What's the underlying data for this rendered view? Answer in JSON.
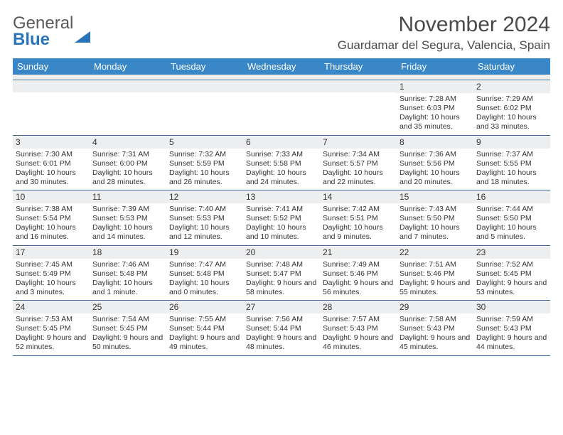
{
  "logo": {
    "word1": "General",
    "word2": "Blue"
  },
  "title": "November 2024",
  "location": "Guardamar del Segura, Valencia, Spain",
  "colors": {
    "header_bg": "#3a87c8",
    "daynum_bg": "#eceef0",
    "week_border": "#3a6a9a",
    "text": "#333333",
    "logo_gray": "#5a5a5a",
    "logo_blue": "#2a74bc",
    "page_bg": "#ffffff"
  },
  "day_names": [
    "Sunday",
    "Monday",
    "Tuesday",
    "Wednesday",
    "Thursday",
    "Friday",
    "Saturday"
  ],
  "weeks": [
    [
      {
        "empty": true
      },
      {
        "empty": true
      },
      {
        "empty": true
      },
      {
        "empty": true
      },
      {
        "empty": true
      },
      {
        "n": "1",
        "sr": "Sunrise: 7:28 AM",
        "ss": "Sunset: 6:03 PM",
        "dl": "Daylight: 10 hours and 35 minutes."
      },
      {
        "n": "2",
        "sr": "Sunrise: 7:29 AM",
        "ss": "Sunset: 6:02 PM",
        "dl": "Daylight: 10 hours and 33 minutes."
      }
    ],
    [
      {
        "n": "3",
        "sr": "Sunrise: 7:30 AM",
        "ss": "Sunset: 6:01 PM",
        "dl": "Daylight: 10 hours and 30 minutes."
      },
      {
        "n": "4",
        "sr": "Sunrise: 7:31 AM",
        "ss": "Sunset: 6:00 PM",
        "dl": "Daylight: 10 hours and 28 minutes."
      },
      {
        "n": "5",
        "sr": "Sunrise: 7:32 AM",
        "ss": "Sunset: 5:59 PM",
        "dl": "Daylight: 10 hours and 26 minutes."
      },
      {
        "n": "6",
        "sr": "Sunrise: 7:33 AM",
        "ss": "Sunset: 5:58 PM",
        "dl": "Daylight: 10 hours and 24 minutes."
      },
      {
        "n": "7",
        "sr": "Sunrise: 7:34 AM",
        "ss": "Sunset: 5:57 PM",
        "dl": "Daylight: 10 hours and 22 minutes."
      },
      {
        "n": "8",
        "sr": "Sunrise: 7:36 AM",
        "ss": "Sunset: 5:56 PM",
        "dl": "Daylight: 10 hours and 20 minutes."
      },
      {
        "n": "9",
        "sr": "Sunrise: 7:37 AM",
        "ss": "Sunset: 5:55 PM",
        "dl": "Daylight: 10 hours and 18 minutes."
      }
    ],
    [
      {
        "n": "10",
        "sr": "Sunrise: 7:38 AM",
        "ss": "Sunset: 5:54 PM",
        "dl": "Daylight: 10 hours and 16 minutes."
      },
      {
        "n": "11",
        "sr": "Sunrise: 7:39 AM",
        "ss": "Sunset: 5:53 PM",
        "dl": "Daylight: 10 hours and 14 minutes."
      },
      {
        "n": "12",
        "sr": "Sunrise: 7:40 AM",
        "ss": "Sunset: 5:53 PM",
        "dl": "Daylight: 10 hours and 12 minutes."
      },
      {
        "n": "13",
        "sr": "Sunrise: 7:41 AM",
        "ss": "Sunset: 5:52 PM",
        "dl": "Daylight: 10 hours and 10 minutes."
      },
      {
        "n": "14",
        "sr": "Sunrise: 7:42 AM",
        "ss": "Sunset: 5:51 PM",
        "dl": "Daylight: 10 hours and 9 minutes."
      },
      {
        "n": "15",
        "sr": "Sunrise: 7:43 AM",
        "ss": "Sunset: 5:50 PM",
        "dl": "Daylight: 10 hours and 7 minutes."
      },
      {
        "n": "16",
        "sr": "Sunrise: 7:44 AM",
        "ss": "Sunset: 5:50 PM",
        "dl": "Daylight: 10 hours and 5 minutes."
      }
    ],
    [
      {
        "n": "17",
        "sr": "Sunrise: 7:45 AM",
        "ss": "Sunset: 5:49 PM",
        "dl": "Daylight: 10 hours and 3 minutes."
      },
      {
        "n": "18",
        "sr": "Sunrise: 7:46 AM",
        "ss": "Sunset: 5:48 PM",
        "dl": "Daylight: 10 hours and 1 minute."
      },
      {
        "n": "19",
        "sr": "Sunrise: 7:47 AM",
        "ss": "Sunset: 5:48 PM",
        "dl": "Daylight: 10 hours and 0 minutes."
      },
      {
        "n": "20",
        "sr": "Sunrise: 7:48 AM",
        "ss": "Sunset: 5:47 PM",
        "dl": "Daylight: 9 hours and 58 minutes."
      },
      {
        "n": "21",
        "sr": "Sunrise: 7:49 AM",
        "ss": "Sunset: 5:46 PM",
        "dl": "Daylight: 9 hours and 56 minutes."
      },
      {
        "n": "22",
        "sr": "Sunrise: 7:51 AM",
        "ss": "Sunset: 5:46 PM",
        "dl": "Daylight: 9 hours and 55 minutes."
      },
      {
        "n": "23",
        "sr": "Sunrise: 7:52 AM",
        "ss": "Sunset: 5:45 PM",
        "dl": "Daylight: 9 hours and 53 minutes."
      }
    ],
    [
      {
        "n": "24",
        "sr": "Sunrise: 7:53 AM",
        "ss": "Sunset: 5:45 PM",
        "dl": "Daylight: 9 hours and 52 minutes."
      },
      {
        "n": "25",
        "sr": "Sunrise: 7:54 AM",
        "ss": "Sunset: 5:45 PM",
        "dl": "Daylight: 9 hours and 50 minutes."
      },
      {
        "n": "26",
        "sr": "Sunrise: 7:55 AM",
        "ss": "Sunset: 5:44 PM",
        "dl": "Daylight: 9 hours and 49 minutes."
      },
      {
        "n": "27",
        "sr": "Sunrise: 7:56 AM",
        "ss": "Sunset: 5:44 PM",
        "dl": "Daylight: 9 hours and 48 minutes."
      },
      {
        "n": "28",
        "sr": "Sunrise: 7:57 AM",
        "ss": "Sunset: 5:43 PM",
        "dl": "Daylight: 9 hours and 46 minutes."
      },
      {
        "n": "29",
        "sr": "Sunrise: 7:58 AM",
        "ss": "Sunset: 5:43 PM",
        "dl": "Daylight: 9 hours and 45 minutes."
      },
      {
        "n": "30",
        "sr": "Sunrise: 7:59 AM",
        "ss": "Sunset: 5:43 PM",
        "dl": "Daylight: 9 hours and 44 minutes."
      }
    ]
  ]
}
